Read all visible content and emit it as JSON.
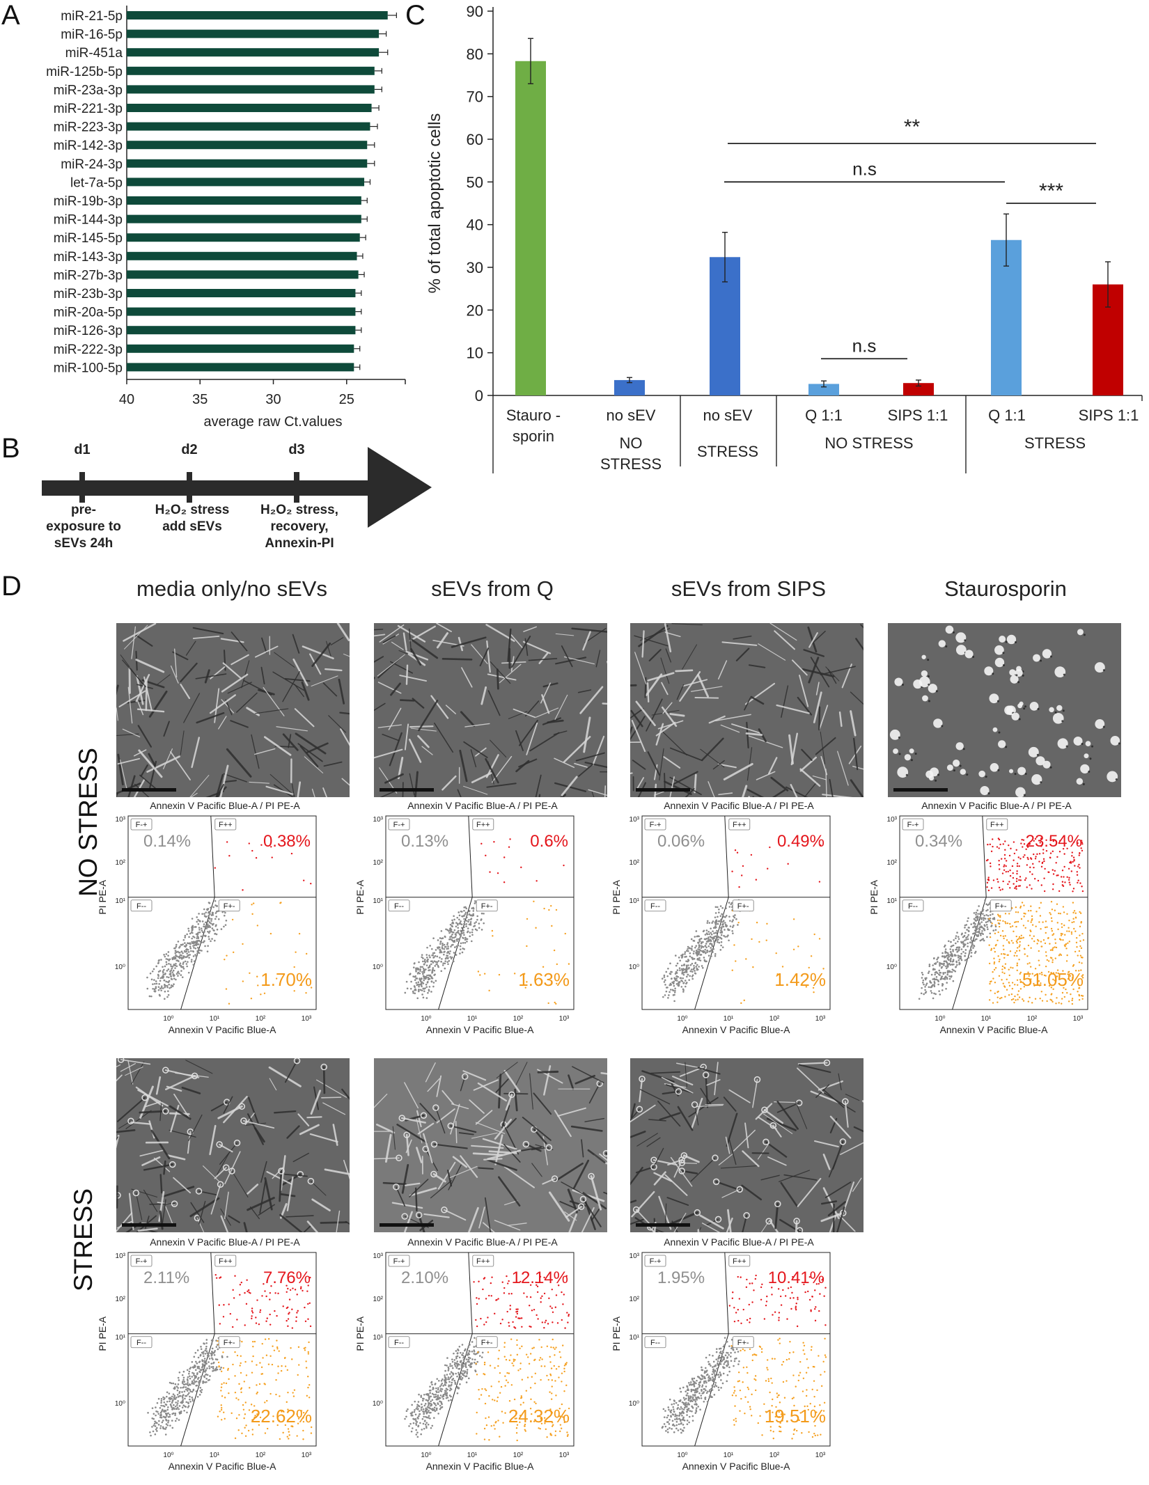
{
  "panels": {
    "A": "A",
    "B": "B",
    "C": "C",
    "D": "D"
  },
  "colors": {
    "barA": "#0e4a3a",
    "stauro": "#6fae45",
    "nosev": "#3b70c9",
    "q": "#5aa0dc",
    "sips": "#c00000",
    "gray_pop": "#8a8a8a",
    "orange_pop": "#f5a020",
    "red_pop": "#e4161c"
  },
  "chart_data": [
    {
      "type": "bar",
      "panel": "A",
      "orientation": "horizontal",
      "categories": [
        "miR-21-5p",
        "miR-16-5p",
        "miR-451a",
        "miR-125b-5p",
        "miR-23a-3p",
        "miR-221-3p",
        "miR-223-3p",
        "miR-142-3p",
        "miR-24-3p",
        "let-7a-5p",
        "miR-19b-3p",
        "miR-144-3p",
        "miR-145-5p",
        "miR-143-3p",
        "miR-27b-3p",
        "miR-23b-3p",
        "miR-20a-5p",
        "miR-126-3p",
        "miR-222-3p",
        "miR-100-5p"
      ],
      "values": [
        22.2,
        22.8,
        22.8,
        23.1,
        23.1,
        23.3,
        23.4,
        23.6,
        23.6,
        23.8,
        24.0,
        24.0,
        24.1,
        24.3,
        24.2,
        24.4,
        24.4,
        24.4,
        24.5,
        24.5
      ],
      "errors": [
        0.6,
        0.5,
        0.6,
        0.5,
        0.5,
        0.5,
        0.5,
        0.5,
        0.5,
        0.4,
        0.4,
        0.4,
        0.4,
        0.4,
        0.4,
        0.4,
        0.4,
        0.4,
        0.4,
        0.4
      ],
      "xlabel": "average raw Ct.values",
      "xlim": [
        40,
        21
      ],
      "xticks": [
        "40",
        "35",
        "30",
        "25"
      ],
      "xtick_values": [
        40,
        35,
        30,
        25
      ]
    },
    {
      "type": "bar",
      "panel": "C",
      "categories": [
        "Stauro -\nsporin",
        "no sEV",
        "no sEV",
        "Q 1:1",
        "SIPS 1:1",
        "Q 1:1",
        "SIPS 1:1"
      ],
      "values": [
        78.3,
        3.6,
        32.4,
        2.7,
        2.9,
        36.4,
        26.0
      ],
      "errors": [
        5.3,
        0.6,
        5.8,
        0.7,
        0.7,
        6.1,
        5.3
      ],
      "ylabel": "% of total apoptotic cells",
      "ylim": [
        0,
        90
      ],
      "yticks": [
        "0",
        "10",
        "20",
        "30",
        "40",
        "50",
        "60",
        "70",
        "80",
        "90"
      ],
      "tick_labels": [
        "Stauro -",
        "sporin",
        "no sEV",
        "no sEV",
        "Q 1:1",
        "SIPS 1:1",
        "Q 1:1",
        "SIPS 1:1"
      ],
      "group_labels": [
        "NO",
        "STRESS",
        "STRESS",
        "NO STRESS",
        "STRESS"
      ],
      "significance": [
        {
          "from": 2,
          "to": 6,
          "label": "**"
        },
        {
          "from": 2,
          "to": 5,
          "label": "n.s"
        },
        {
          "from": 5,
          "to": 6,
          "label": "***"
        },
        {
          "from": 3,
          "to": 4,
          "label": "n.s"
        }
      ]
    }
  ],
  "timeline": {
    "days": [
      "d1",
      "d2",
      "d3"
    ],
    "notes": [
      [
        "pre-",
        "exposure to",
        "sEVs 24h"
      ],
      [
        "H₂O₂ stress",
        "add sEVs"
      ],
      [
        "H₂O₂ stress,",
        "recovery,",
        "Annexin-PI"
      ]
    ]
  },
  "grid": {
    "columns": [
      "media only/no sEVs",
      "sEVs from Q",
      "sEVs from SIPS",
      "Staurosporin"
    ],
    "rows": [
      "NO STRESS",
      "STRESS"
    ]
  },
  "flow_labels": {
    "title": "Annexin V Pacific Blue-A / PI PE-A",
    "xlabel": "Annexin V Pacific Blue-A",
    "ylabel": "PI PE-A",
    "q_fm": "F-+",
    "q_pp": "F++",
    "q_mm": "F--",
    "q_pm": "F+-",
    "ticks": [
      "10⁰",
      "10¹",
      "10²",
      "10³"
    ]
  },
  "flow": [
    {
      "row": 0,
      "col": 0,
      "ul": "0.14%",
      "ur": "0.38%",
      "lr": "1.70%",
      "apoptotic_density": 0.02
    },
    {
      "row": 0,
      "col": 1,
      "ul": "0.13%",
      "ur": "0.6%",
      "lr": "1.63%",
      "apoptotic_density": 0.02
    },
    {
      "row": 0,
      "col": 2,
      "ul": "0.06%",
      "ur": "0.49%",
      "lr": "1.42%",
      "apoptotic_density": 0.02
    },
    {
      "row": 0,
      "col": 3,
      "ul": "0.34%",
      "ur": "23.54%",
      "lr": "51.05%",
      "apoptotic_density": 0.75
    },
    {
      "row": 1,
      "col": 0,
      "ul": "2.11%",
      "ur": "7.76%",
      "lr": "22.62%",
      "apoptotic_density": 0.3
    },
    {
      "row": 1,
      "col": 1,
      "ul": "2.10%",
      "ur": "12.14%",
      "lr": "24.32%",
      "apoptotic_density": 0.35
    },
    {
      "row": 1,
      "col": 2,
      "ul": "1.95%",
      "ur": "10.41%",
      "lr": "19.51%",
      "apoptotic_density": 0.28
    }
  ]
}
